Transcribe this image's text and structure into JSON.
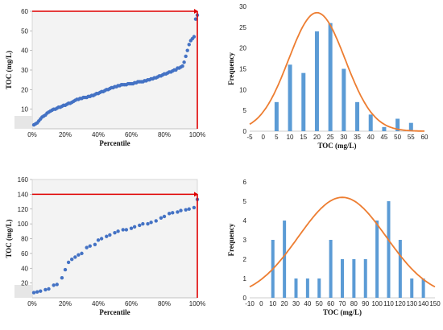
{
  "colors": {
    "point": "#4472c4",
    "bar": "#5b9bd5",
    "curve": "#ed7d31",
    "refline": "#e00000",
    "plot_bg": "#f3f3f3"
  },
  "chart_data": [
    {
      "type": "scatter",
      "xlabel": "Percentile",
      "ylabel": "TOC (mg/L)",
      "xticks": [
        "0%",
        "20%",
        "40%",
        "60%",
        "80%",
        "100%"
      ],
      "yticks": [
        "10",
        "20",
        "30",
        "40",
        "50",
        "60"
      ],
      "xlim": [
        0,
        100
      ],
      "ylim": [
        0,
        60
      ],
      "refline": {
        "x": 100,
        "y": 60
      },
      "points": [
        [
          1,
          2
        ],
        [
          2,
          2.5
        ],
        [
          3,
          3
        ],
        [
          4,
          4
        ],
        [
          5,
          5
        ],
        [
          6,
          6
        ],
        [
          7,
          6.5
        ],
        [
          8,
          7
        ],
        [
          9,
          8
        ],
        [
          10,
          8.5
        ],
        [
          11,
          9
        ],
        [
          12,
          9.5
        ],
        [
          13,
          10
        ],
        [
          14,
          10
        ],
        [
          15,
          10.5
        ],
        [
          16,
          11
        ],
        [
          17,
          11
        ],
        [
          18,
          11.5
        ],
        [
          19,
          12
        ],
        [
          20,
          12
        ],
        [
          21,
          12.5
        ],
        [
          22,
          13
        ],
        [
          23,
          13
        ],
        [
          24,
          13.5
        ],
        [
          25,
          14
        ],
        [
          26,
          14.5
        ],
        [
          27,
          15
        ],
        [
          28,
          15
        ],
        [
          29,
          15.5
        ],
        [
          30,
          15.5
        ],
        [
          31,
          16
        ],
        [
          32,
          16
        ],
        [
          33,
          16
        ],
        [
          34,
          16.5
        ],
        [
          35,
          16.5
        ],
        [
          36,
          17
        ],
        [
          37,
          17
        ],
        [
          38,
          17.5
        ],
        [
          39,
          18
        ],
        [
          40,
          18
        ],
        [
          41,
          18.5
        ],
        [
          42,
          19
        ],
        [
          43,
          19
        ],
        [
          44,
          19.5
        ],
        [
          45,
          20
        ],
        [
          46,
          20
        ],
        [
          47,
          20.5
        ],
        [
          48,
          21
        ],
        [
          49,
          21
        ],
        [
          50,
          21.5
        ],
        [
          51,
          21.5
        ],
        [
          52,
          22
        ],
        [
          53,
          22
        ],
        [
          54,
          22.5
        ],
        [
          55,
          22.5
        ],
        [
          56,
          22.5
        ],
        [
          57,
          22.5
        ],
        [
          58,
          23
        ],
        [
          59,
          23
        ],
        [
          60,
          23
        ],
        [
          61,
          23
        ],
        [
          62,
          23.5
        ],
        [
          63,
          23.5
        ],
        [
          64,
          24
        ],
        [
          65,
          24
        ],
        [
          66,
          24
        ],
        [
          67,
          24
        ],
        [
          68,
          24.5
        ],
        [
          69,
          24.5
        ],
        [
          70,
          25
        ],
        [
          71,
          25
        ],
        [
          72,
          25.5
        ],
        [
          73,
          25.5
        ],
        [
          74,
          26
        ],
        [
          75,
          26
        ],
        [
          76,
          26.5
        ],
        [
          77,
          27
        ],
        [
          78,
          27
        ],
        [
          79,
          27.5
        ],
        [
          80,
          28
        ],
        [
          81,
          28
        ],
        [
          82,
          28.5
        ],
        [
          83,
          29
        ],
        [
          84,
          29
        ],
        [
          85,
          29.5
        ],
        [
          86,
          30
        ],
        [
          87,
          30
        ],
        [
          88,
          31
        ],
        [
          89,
          31
        ],
        [
          90,
          31.5
        ],
        [
          91,
          32
        ],
        [
          92,
          34
        ],
        [
          93,
          37
        ],
        [
          94,
          40
        ],
        [
          95,
          43
        ],
        [
          96,
          45
        ],
        [
          97,
          46
        ],
        [
          98,
          47
        ],
        [
          99,
          56
        ],
        [
          100,
          58
        ]
      ]
    },
    {
      "type": "bar",
      "xlabel": "TOC (mg/L)",
      "ylabel": "Frequency",
      "xticks": [
        "-5",
        "0",
        "5",
        "10",
        "15",
        "20",
        "25",
        "30",
        "35",
        "40",
        "45",
        "50",
        "55",
        "60"
      ],
      "yticks": [
        "0",
        "5",
        "10",
        "15",
        "20",
        "25",
        "30"
      ],
      "xlim": [
        -5,
        60
      ],
      "ylim": [
        0,
        30
      ],
      "bars": [
        [
          5,
          7
        ],
        [
          10,
          16
        ],
        [
          15,
          14
        ],
        [
          20,
          24
        ],
        [
          25,
          26
        ],
        [
          30,
          15
        ],
        [
          35,
          7
        ],
        [
          40,
          4
        ],
        [
          45,
          1
        ],
        [
          50,
          3
        ],
        [
          55,
          2
        ]
      ],
      "curve": {
        "mean": 20,
        "peak": 28.5,
        "sd": 10.5
      }
    },
    {
      "type": "scatter",
      "xlabel": "Percentile",
      "ylabel": "TOC (mg/L)",
      "xticks": [
        "0%",
        "20%",
        "40%",
        "60%",
        "80%",
        "100%"
      ],
      "yticks": [
        "20",
        "40",
        "60",
        "80",
        "100",
        "120",
        "140",
        "160"
      ],
      "xlim": [
        0,
        100
      ],
      "ylim": [
        0,
        160
      ],
      "refline": {
        "x": 100,
        "y": 140
      },
      "points": [
        [
          1,
          7
        ],
        [
          3,
          8
        ],
        [
          5,
          9
        ],
        [
          8,
          11
        ],
        [
          10,
          12
        ],
        [
          13,
          17
        ],
        [
          15,
          18
        ],
        [
          18,
          27
        ],
        [
          20,
          38
        ],
        [
          22,
          48
        ],
        [
          24,
          52
        ],
        [
          26,
          55
        ],
        [
          28,
          58
        ],
        [
          30,
          60
        ],
        [
          33,
          68
        ],
        [
          35,
          70
        ],
        [
          38,
          72
        ],
        [
          40,
          78
        ],
        [
          42,
          80
        ],
        [
          45,
          83
        ],
        [
          47,
          85
        ],
        [
          50,
          88
        ],
        [
          52,
          90
        ],
        [
          55,
          92
        ],
        [
          57,
          92
        ],
        [
          60,
          94
        ],
        [
          62,
          96
        ],
        [
          65,
          98
        ],
        [
          67,
          100
        ],
        [
          70,
          100
        ],
        [
          72,
          102
        ],
        [
          75,
          104
        ],
        [
          78,
          108
        ],
        [
          80,
          110
        ],
        [
          83,
          114
        ],
        [
          85,
          115
        ],
        [
          88,
          116
        ],
        [
          90,
          118
        ],
        [
          93,
          119
        ],
        [
          95,
          120
        ],
        [
          98,
          122
        ],
        [
          100,
          133
        ]
      ]
    },
    {
      "type": "bar",
      "xlabel": "TOC (mg/L)",
      "ylabel": "Frequency",
      "xticks": [
        "-10",
        "0",
        "10",
        "20",
        "30",
        "40",
        "50",
        "60",
        "70",
        "80",
        "90",
        "100",
        "110",
        "120",
        "130",
        "140",
        "150"
      ],
      "yticks": [
        "0",
        "1",
        "2",
        "3",
        "4",
        "5",
        "6"
      ],
      "xlim": [
        -10,
        150
      ],
      "ylim": [
        0,
        6
      ],
      "bars": [
        [
          10,
          3
        ],
        [
          20,
          4
        ],
        [
          30,
          1
        ],
        [
          40,
          1
        ],
        [
          50,
          1
        ],
        [
          60,
          3
        ],
        [
          70,
          2
        ],
        [
          80,
          2
        ],
        [
          90,
          2
        ],
        [
          100,
          4
        ],
        [
          110,
          5
        ],
        [
          120,
          3
        ],
        [
          130,
          1
        ],
        [
          140,
          1
        ]
      ],
      "curve": {
        "mean": 70,
        "peak": 5.2,
        "sd": 38
      }
    }
  ]
}
